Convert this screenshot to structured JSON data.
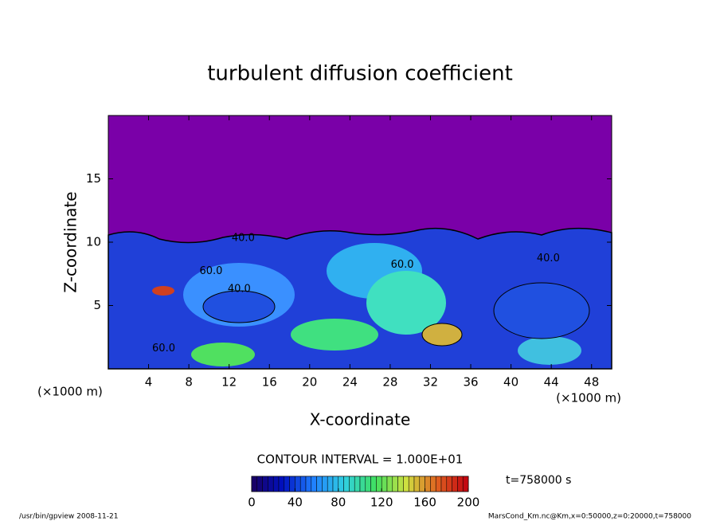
{
  "chart_data": {
    "type": "contour",
    "title": "turbulent diffusion coefficient",
    "xlabel": "X-coordinate",
    "ylabel": "Z-coordinate",
    "x_unit_left": "(×1000 m)",
    "x_unit_right": "(×1000 m)",
    "xlim": [
      0,
      50
    ],
    "xticks": [
      4,
      8,
      12,
      16,
      20,
      24,
      28,
      32,
      36,
      40,
      44,
      48
    ],
    "ylim": [
      0,
      20
    ],
    "yticks": [
      5,
      10,
      15
    ],
    "contour_labels": [
      {
        "x": 13.4,
        "y": 10.3,
        "label": "40.0"
      },
      {
        "x": 10.2,
        "y": 7.7,
        "label": "60.0"
      },
      {
        "x": 13.0,
        "y": 6.3,
        "label": "40.0"
      },
      {
        "x": 29.2,
        "y": 8.2,
        "label": "60.0"
      },
      {
        "x": 43.7,
        "y": 8.7,
        "label": "40.0"
      },
      {
        "x": 5.5,
        "y": 1.6,
        "label": "60.0"
      }
    ],
    "contour_interval": "CONTOUR INTERVAL = 1.000E+01",
    "colorbar": {
      "lim": [
        0,
        200
      ],
      "ticks": [
        0,
        40,
        80,
        120,
        160,
        200
      ],
      "colors": [
        "#1a0060",
        "#0010c0",
        "#2080ff",
        "#30d0e0",
        "#40e060",
        "#d0e040",
        "#e06020",
        "#c00010"
      ]
    },
    "time_label": "t=758000 s",
    "footer_left": "/usr/bin/gpview  2008-11-21",
    "footer_right": "MarsCond_Km.nc@Km,x=0:50000,z=0:20000,t=758000"
  }
}
